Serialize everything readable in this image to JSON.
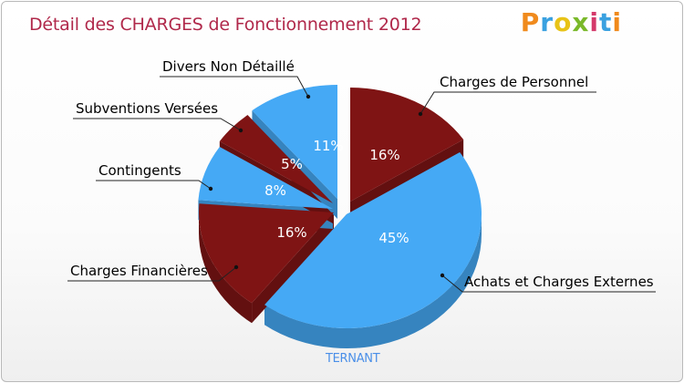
{
  "title": "Détail des CHARGES de Fonctionnement 2012",
  "logo_letters": [
    "P",
    "r",
    "o",
    "x",
    "i",
    "t",
    "i"
  ],
  "commune": "TERNANT",
  "colors": {
    "dark": "#7f1414",
    "light": "#45a9f5",
    "title": "#b0284a"
  },
  "chart_data": {
    "type": "pie",
    "title": "Détail des CHARGES de Fonctionnement 2012",
    "slices": [
      {
        "name": "Charges de Personnel",
        "label": "Charges de Personnel",
        "value": 16,
        "pct_label": "16%",
        "color": "dark"
      },
      {
        "name": "Achats et Charges Externes",
        "label": "Achats et Charges Externes",
        "value": 45,
        "pct_label": "45%",
        "color": "light"
      },
      {
        "name": "Charges Financières",
        "label": "Charges Financières",
        "value": 16,
        "pct_label": "16%",
        "color": "dark"
      },
      {
        "name": "Contingents",
        "label": "Contingents",
        "value": 8,
        "pct_label": "8%",
        "color": "light"
      },
      {
        "name": "Subventions Versées",
        "label": "Subventions Versées",
        "value": 5,
        "pct_label": "5%",
        "color": "dark"
      },
      {
        "name": "Divers Non Détaillé",
        "label": "Divers Non Détaillé",
        "value": 11,
        "pct_label": "11%",
        "color": "light"
      }
    ]
  }
}
